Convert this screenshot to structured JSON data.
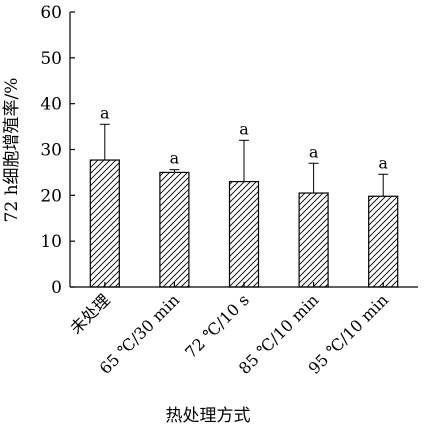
{
  "chart_data": {
    "type": "bar",
    "categories": [
      "未处理",
      "65 ℃/30 min",
      "72 ℃/10 s",
      "85 ℃/10 min",
      "95 ℃/10 min"
    ],
    "values": [
      27.7,
      25.0,
      23.0,
      20.5,
      19.8
    ],
    "errors": [
      7.8,
      0.6,
      9.0,
      6.5,
      4.8
    ],
    "significance": [
      "a",
      "a",
      "a",
      "a",
      "a"
    ],
    "xlabel": "热处理方式",
    "ylabel": "72 h细胞增殖率/%",
    "ylim": [
      0,
      60
    ],
    "yticks": [
      "0",
      "10",
      "20",
      "30",
      "40",
      "50",
      "60"
    ],
    "bar_fill": "diagonal-hatch",
    "colors": {
      "line": "#000000",
      "background": "#ffffff"
    }
  }
}
